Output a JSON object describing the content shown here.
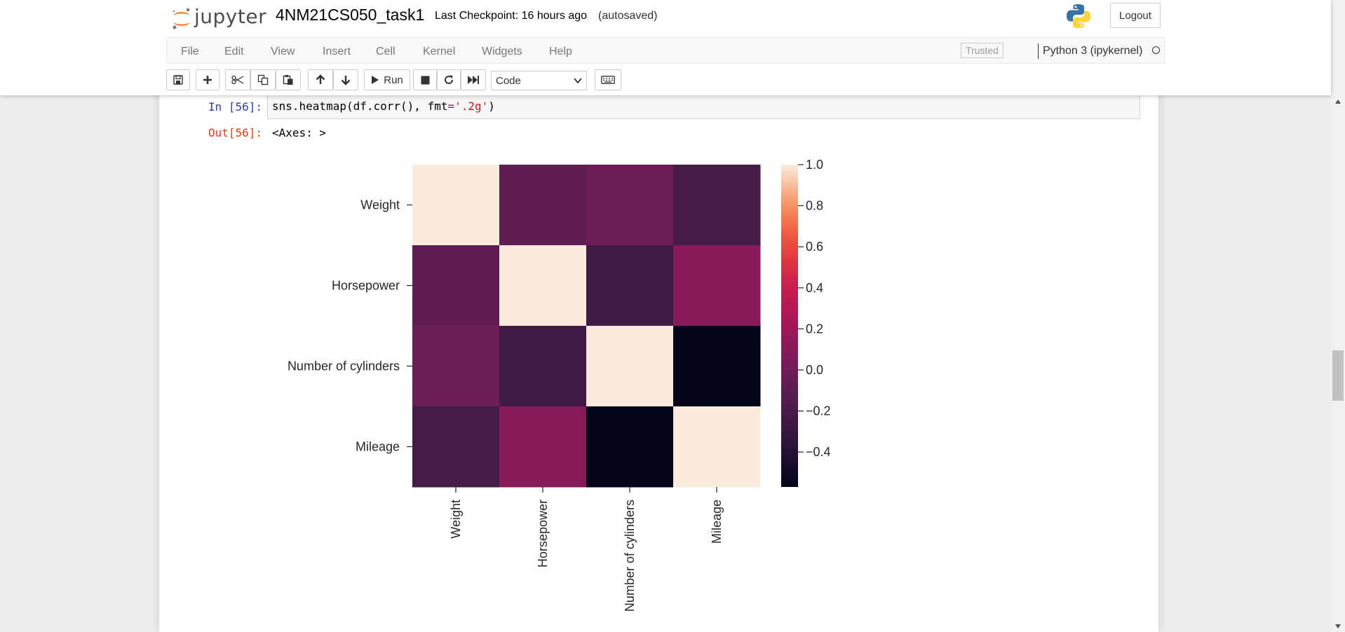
{
  "header": {
    "logo_text": "jupyter",
    "notebook_name": "4NM21CS050_task1",
    "checkpoint": "Last Checkpoint: 16 hours ago",
    "autosave": "(autosaved)",
    "logout_label": "Logout"
  },
  "menu": {
    "items": [
      "File",
      "Edit",
      "View",
      "Insert",
      "Cell",
      "Kernel",
      "Widgets",
      "Help"
    ],
    "trusted_label": "Trusted",
    "kernel_name": "Python 3 (ipykernel)"
  },
  "toolbar": {
    "run_label": "Run",
    "cell_type": "Code",
    "icons": [
      "save-icon",
      "plus-icon",
      "cut-icon",
      "copy-icon",
      "paste-icon",
      "arrow-up-icon",
      "arrow-down-icon",
      "play-icon",
      "stop-icon",
      "restart-icon",
      "fast-forward-icon",
      "keyboard-icon"
    ]
  },
  "cell": {
    "in_prompt": "In [56]:",
    "code_pre": "sns.heatmap(df.corr(), ",
    "code_kw": "fmt",
    "code_eq": "=",
    "code_str": "'.2g'",
    "code_post": ")",
    "out_prompt": "Out[56]:",
    "out_text": "<Axes: >"
  },
  "chart_data": {
    "type": "heatmap",
    "rows": [
      "Weight",
      "Horsepower",
      "Number of cylinders",
      "Mileage"
    ],
    "columns": [
      "Weight",
      "Horsepower",
      "Number of cylinders",
      "Mileage"
    ],
    "values": [
      [
        1.0,
        -0.08,
        -0.03,
        -0.22
      ],
      [
        -0.08,
        1.0,
        -0.24,
        0.1
      ],
      [
        -0.03,
        -0.24,
        1.0,
        -0.57
      ],
      [
        -0.22,
        0.1,
        -0.57,
        1.0
      ]
    ],
    "colorbar": {
      "ticks": [
        1.0,
        0.8,
        0.6,
        0.4,
        0.2,
        0.0,
        -0.2,
        -0.4
      ],
      "tick_labels": [
        "1.0",
        "0.8",
        "0.6",
        "0.4",
        "0.2",
        "0.0",
        "−0.2",
        "−0.4"
      ],
      "vmin": -0.57,
      "vmax": 1.0,
      "colormap": "rocket"
    }
  }
}
